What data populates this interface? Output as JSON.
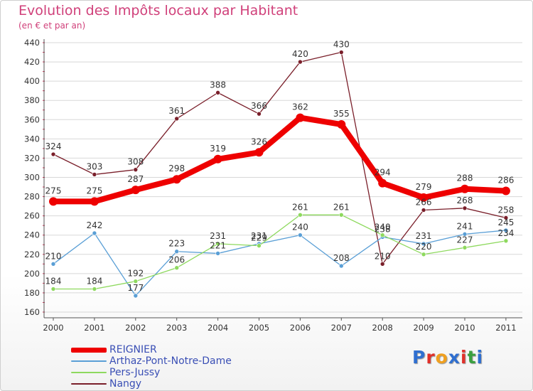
{
  "page": {
    "title": "Evolution des Impôts locaux par Habitant",
    "subtitle": "(en € et par an)",
    "logo": "Proxiti",
    "logo_colors": [
      "#2f6fd0",
      "#e0302a",
      "#f0a020",
      "#2f6fd0",
      "#e0302a",
      "#3aa040",
      "#2f6fd0"
    ]
  },
  "chart_data": {
    "type": "line",
    "title": "Evolution des Impôts locaux par Habitant",
    "subtitle": "(en € et par an)",
    "categories": [
      "2000",
      "2001",
      "2002",
      "2003",
      "2004",
      "2005",
      "2006",
      "2007",
      "2008",
      "2009",
      "2010",
      "2011"
    ],
    "ylim": [
      160,
      440
    ],
    "yticks": [
      160,
      180,
      200,
      220,
      240,
      260,
      280,
      300,
      320,
      340,
      360,
      380,
      400,
      420,
      440
    ],
    "grid": "horizontal",
    "legend_position": "bottom-left",
    "series": [
      {
        "name": "Nangy",
        "color": "#7a1f2a",
        "values": [
          324,
          303,
          308,
          361,
          388,
          366,
          420,
          430,
          210,
          266,
          268,
          258
        ]
      },
      {
        "name": "Arthaz-Pont-Notre-Dame",
        "color": "#5a9fd6",
        "values": [
          210,
          242,
          177,
          223,
          221,
          231,
          240,
          208,
          238,
          231,
          241,
          245
        ]
      },
      {
        "name": "Pers-Jussy",
        "color": "#8ed95e",
        "values": [
          184,
          184,
          192,
          206,
          231,
          229,
          261,
          261,
          240,
          220,
          227,
          234
        ]
      },
      {
        "name": "REIGNIER",
        "color": "#ee0000",
        "values": [
          275,
          275,
          287,
          298,
          319,
          326,
          362,
          355,
          294,
          279,
          288,
          286
        ]
      }
    ],
    "legend": [
      "REIGNIER",
      "Arthaz-Pont-Notre-Dame",
      "Pers-Jussy",
      "Nangy"
    ]
  }
}
